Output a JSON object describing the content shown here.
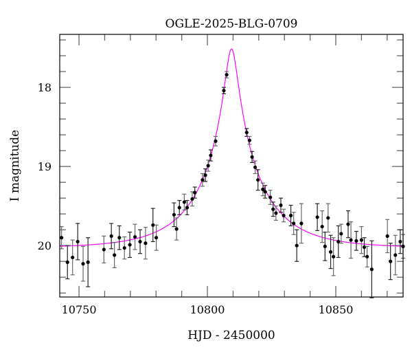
{
  "chart_data": {
    "type": "scatter",
    "title": "OGLE-2025-BLG-0709",
    "xlabel": "HJD - 2450000",
    "ylabel": "I magnitude",
    "xlim": [
      10742.5,
      10876.2
    ],
    "ylim": [
      20.65,
      17.33
    ],
    "y_inverted": true,
    "grid": false,
    "x_ticks": [
      10750,
      10800,
      10850
    ],
    "x_tick_labels": [
      "10750",
      "10800",
      "10850"
    ],
    "y_ticks": [
      18,
      19,
      20
    ],
    "y_tick_labels": [
      "18",
      "19",
      "20"
    ],
    "colors": {
      "points": "#000000",
      "errorbars": "#555555",
      "model": "#ff00ff"
    },
    "series": [
      {
        "kind": "points-with-errorbars",
        "x": [
          10743.2,
          10745.5,
          10747.5,
          10749.5,
          10751.6,
          10753.5,
          10759.7,
          10762.6,
          10763.8,
          10765.7,
          10767.7,
          10769.8,
          10771.8,
          10773.8,
          10775.9,
          10778.8,
          10780.1,
          10787.0,
          10788.0,
          10789.1,
          10791.0,
          10792.1,
          10794.1,
          10795.1,
          10798.1,
          10799.2,
          10800.3,
          10801.3,
          10803.2,
          10806.4,
          10807.5,
          10815.3,
          10816.4,
          10817.4,
          10818.6,
          10819.7,
          10821.6,
          10822.5,
          10824.5,
          10825.6,
          10826.7,
          10828.6,
          10829.7,
          10832.5,
          10833.6,
          10834.8,
          10836.6,
          10842.8,
          10844.7,
          10845.8,
          10847.0,
          10848.0,
          10849.1,
          10851.0,
          10852.1,
          10854.8,
          10855.9,
          10858.0,
          10860.0,
          10861.1,
          10862.2,
          10864.0,
          10870.1,
          10871.3,
          10873.2,
          10875.1,
          10876.2
        ],
        "y": [
          19.9,
          20.21,
          20.15,
          19.95,
          20.23,
          20.21,
          20.05,
          19.88,
          20.12,
          19.9,
          20.03,
          19.99,
          19.89,
          19.95,
          19.97,
          19.74,
          19.9,
          19.61,
          19.79,
          19.52,
          19.45,
          19.52,
          19.41,
          19.33,
          19.17,
          19.11,
          18.99,
          18.86,
          18.68,
          18.04,
          17.84,
          18.57,
          18.67,
          18.88,
          19.01,
          19.17,
          19.29,
          19.32,
          19.39,
          19.54,
          19.59,
          19.49,
          19.62,
          19.62,
          19.72,
          20.0,
          19.72,
          19.64,
          19.76,
          20.01,
          19.65,
          20.08,
          20.14,
          19.95,
          19.85,
          19.73,
          19.93,
          19.94,
          19.93,
          20.02,
          20.14,
          20.3,
          19.88,
          20.2,
          20.12,
          19.95,
          20.01
        ],
        "err": [
          0.14,
          0.21,
          0.22,
          0.23,
          0.22,
          0.31,
          0.17,
          0.16,
          0.16,
          0.15,
          0.14,
          0.16,
          0.16,
          0.15,
          0.2,
          0.21,
          0.16,
          0.15,
          0.14,
          0.09,
          0.1,
          0.09,
          0.09,
          0.07,
          0.08,
          0.08,
          0.07,
          0.07,
          0.06,
          0.04,
          0.04,
          0.05,
          0.05,
          0.07,
          0.08,
          0.13,
          0.08,
          0.08,
          0.09,
          0.09,
          0.09,
          0.09,
          0.08,
          0.13,
          0.14,
          0.2,
          0.25,
          0.17,
          0.2,
          0.18,
          0.18,
          0.21,
          0.24,
          0.2,
          0.12,
          0.17,
          0.23,
          0.12,
          0.17,
          0.12,
          0.13,
          0.36,
          0.21,
          0.23,
          0.25,
          0.15,
          0.15
        ]
      },
      {
        "kind": "model-line",
        "model": "point-source point-lens",
        "t0": 10809.4,
        "u0": 0.099,
        "tE": 23.5,
        "baseline_mag": 20.03
      }
    ]
  }
}
